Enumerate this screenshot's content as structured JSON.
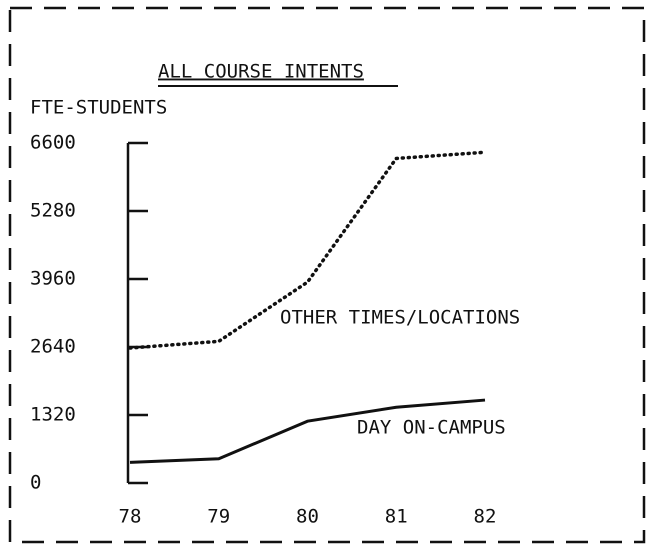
{
  "chart_data": {
    "type": "line",
    "title": "ALL COURSE INTENTS",
    "y_label": "FTE-STUDENTS",
    "categories": [
      "78",
      "79",
      "80",
      "81",
      "82"
    ],
    "series": [
      {
        "name": "OTHER TIMES/LOCATIONS",
        "color": "#111111",
        "style": "dotted",
        "values": [
          2620,
          2750,
          3900,
          6300,
          6420
        ]
      },
      {
        "name": "DAY ON-CAMPUS",
        "color": "#111111",
        "style": "solid",
        "values": [
          400,
          470,
          1200,
          1470,
          1610
        ]
      }
    ],
    "ylim": [
      0,
      6600
    ],
    "yticks": [
      0,
      1320,
      2640,
      3960,
      5280,
      6600
    ]
  }
}
